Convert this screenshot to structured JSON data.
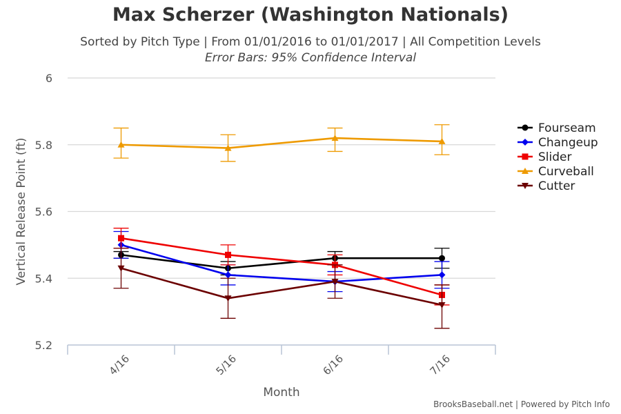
{
  "title": "Max Scherzer (Washington Nationals)",
  "subtitle": "Sorted by Pitch Type | From 01/01/2016 to 01/01/2017 | All Competition Levels",
  "subtitle2": "Error Bars: 95% Confidence Interval",
  "credits": "BrooksBaseball.net | Powered by Pitch Info",
  "chart_data": {
    "type": "line",
    "xlabel": "Month",
    "ylabel": "Vertical Release Point (ft)",
    "categories": [
      "4/16",
      "5/16",
      "6/16",
      "7/16"
    ],
    "ylim": [
      5.2,
      6.0
    ],
    "yticks": [
      "5.2",
      "5.4",
      "5.6",
      "5.8",
      "6"
    ],
    "grid": true,
    "legend_position": "right",
    "series": [
      {
        "name": "Fourseam",
        "color": "#000000",
        "marker": "circle",
        "values": [
          5.47,
          5.43,
          5.46,
          5.46
        ],
        "err_low": [
          5.46,
          5.41,
          5.44,
          5.43
        ],
        "err_high": [
          5.48,
          5.45,
          5.48,
          5.49
        ]
      },
      {
        "name": "Changeup",
        "color": "#0000ee",
        "marker": "diamond",
        "values": [
          5.5,
          5.41,
          5.39,
          5.41
        ],
        "err_low": [
          5.46,
          5.38,
          5.36,
          5.37
        ],
        "err_high": [
          5.54,
          5.44,
          5.42,
          5.45
        ]
      },
      {
        "name": "Slider",
        "color": "#ee0000",
        "marker": "square",
        "values": [
          5.52,
          5.47,
          5.44,
          5.35
        ],
        "err_low": [
          5.49,
          5.44,
          5.41,
          5.32
        ],
        "err_high": [
          5.55,
          5.5,
          5.47,
          5.38
        ]
      },
      {
        "name": "Curveball",
        "color": "#ee9a00",
        "marker": "triangle",
        "values": [
          5.8,
          5.79,
          5.82,
          5.81
        ],
        "err_low": [
          5.76,
          5.75,
          5.78,
          5.77
        ],
        "err_high": [
          5.85,
          5.83,
          5.85,
          5.86
        ]
      },
      {
        "name": "Cutter",
        "color": "#6b0000",
        "marker": "triangle-down",
        "values": [
          5.43,
          5.34,
          5.39,
          5.32
        ],
        "err_low": [
          5.37,
          5.28,
          5.34,
          5.25
        ],
        "err_high": [
          5.49,
          5.4,
          5.44,
          5.38
        ]
      }
    ]
  }
}
